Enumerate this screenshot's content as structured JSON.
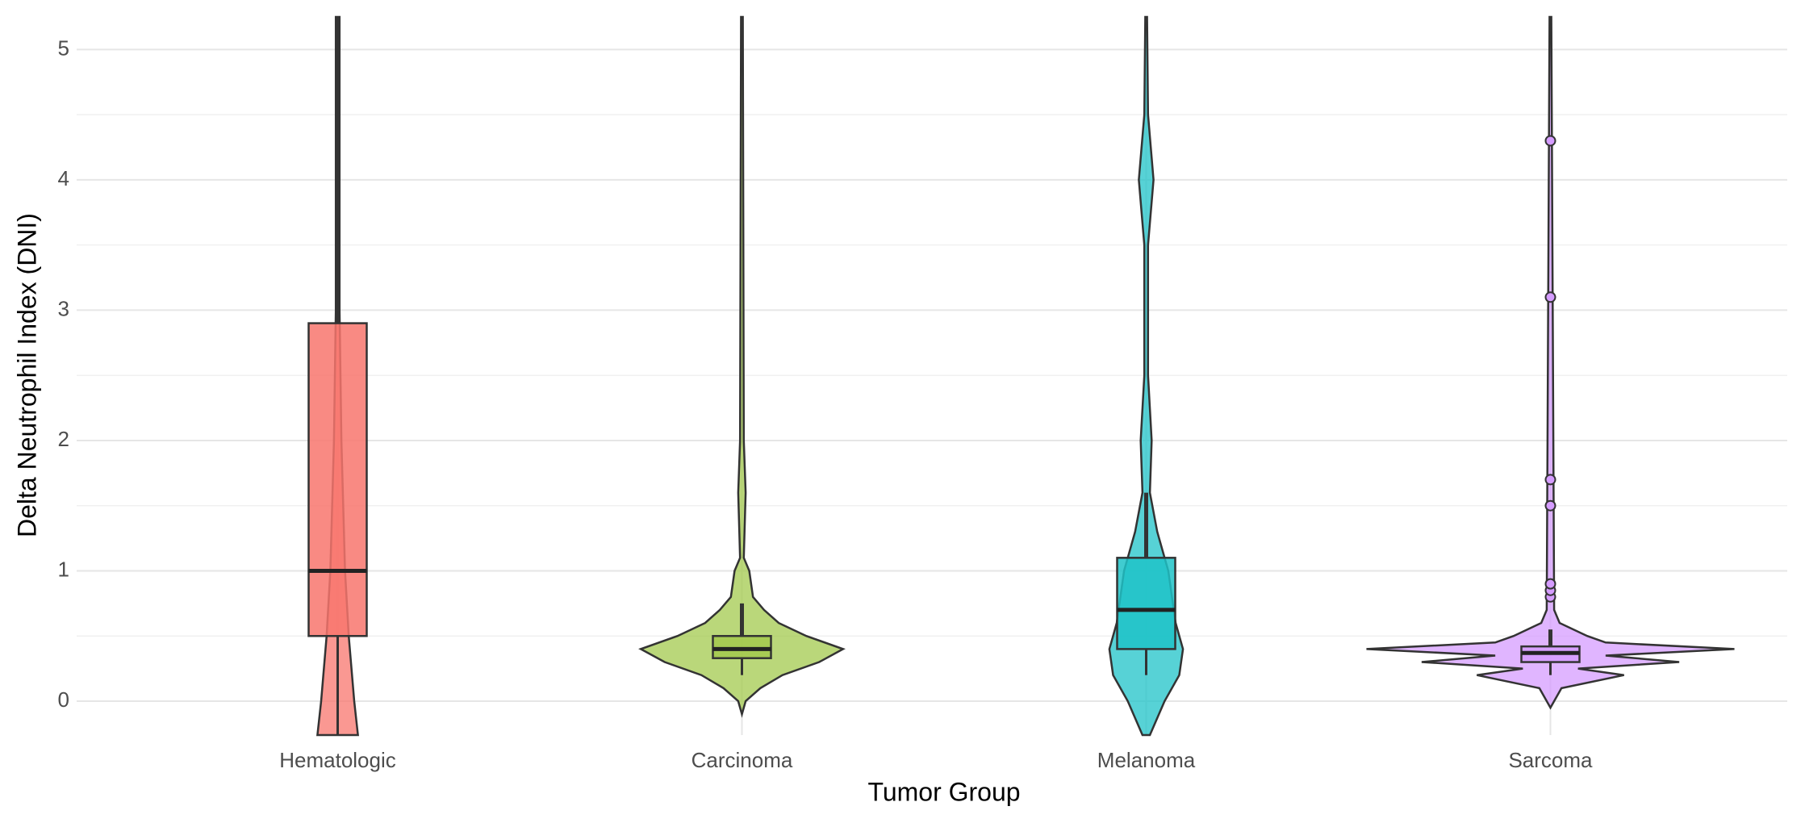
{
  "chart_data": {
    "type": "violin_box",
    "x_label": "Tumor Group",
    "y_label": "Delta Neutrophil Index (DNI)",
    "categories": [
      "Hematologic",
      "Carcinoma",
      "Melanoma",
      "Sarcoma"
    ],
    "ylim": [
      -0.26,
      5.25
    ],
    "yticks": [
      0,
      1,
      2,
      3,
      4,
      5
    ],
    "minor_grid": [
      0.5,
      1.5,
      2.5,
      3.5,
      4.5
    ],
    "grid": true,
    "groups": [
      {
        "color": "#F8766D",
        "q1": 0.5,
        "median": 1.0,
        "q3": 2.9,
        "whisker_low": -0.26,
        "whisker_high": 5.25,
        "outliers": [],
        "violin_y": [
          -0.26,
          0,
          0.5,
          1,
          2,
          3,
          5.25
        ],
        "violin_width": [
          0.11,
          0.09,
          0.06,
          0.04,
          0.02,
          0.01,
          0.01
        ]
      },
      {
        "color": "#A3C94E",
        "q1": 0.33,
        "median": 0.4,
        "q3": 0.5,
        "whisker_low": 0.2,
        "whisker_high": 0.75,
        "outliers": [],
        "violin_y": [
          -0.1,
          0,
          0.1,
          0.2,
          0.3,
          0.4,
          0.5,
          0.6,
          0.7,
          0.8,
          1.0,
          1.1,
          1.6,
          2.0,
          5.25
        ],
        "violin_width": [
          0,
          0.02,
          0.1,
          0.22,
          0.42,
          0.55,
          0.35,
          0.2,
          0.12,
          0.06,
          0.04,
          0.01,
          0.02,
          0.01,
          0.005
        ]
      },
      {
        "color": "#1FC3C8",
        "q1": 0.4,
        "median": 0.7,
        "q3": 1.1,
        "whisker_low": 0.2,
        "whisker_high": 1.6,
        "outliers": [],
        "violin_y": [
          -0.26,
          0,
          0.2,
          0.4,
          0.6,
          1.0,
          1.3,
          1.6,
          2.0,
          2.5,
          3.5,
          4.0,
          4.5,
          5.25
        ],
        "violin_width": [
          0.02,
          0.1,
          0.18,
          0.2,
          0.16,
          0.12,
          0.06,
          0.02,
          0.03,
          0.01,
          0.01,
          0.04,
          0.01,
          0.005
        ]
      },
      {
        "color": "#D59CFF",
        "q1": 0.3,
        "median": 0.37,
        "q3": 0.42,
        "whisker_low": 0.2,
        "whisker_high": 0.55,
        "outliers": [
          0.8,
          0.85,
          0.9,
          1.5,
          1.7,
          3.1,
          4.3
        ],
        "violin_y": [
          -0.05,
          0.1,
          0.2,
          0.25,
          0.3,
          0.35,
          0.4,
          0.45,
          0.5,
          0.6,
          0.7,
          5.25
        ],
        "violin_width": [
          0,
          0.06,
          0.4,
          0.15,
          0.7,
          0.3,
          1.0,
          0.3,
          0.2,
          0.05,
          0.02,
          0.005
        ]
      }
    ]
  }
}
